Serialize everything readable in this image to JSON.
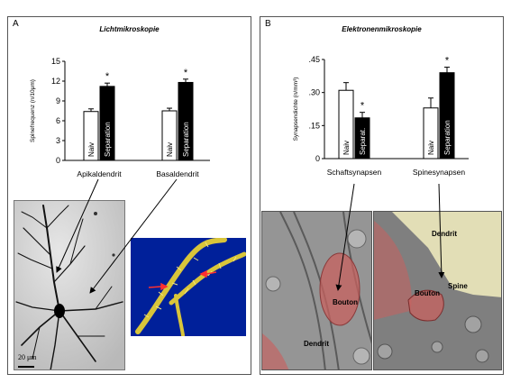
{
  "panels": {
    "a": {
      "label": "A",
      "title": "Lichtmikroskopie"
    },
    "b": {
      "label": "B",
      "title": "Elektronenmikroskopie"
    }
  },
  "chart_data": [
    {
      "type": "bar",
      "ylabel": "Spinefrequenz (n/10μm)",
      "ylim": [
        0,
        15
      ],
      "yticks": [
        "0",
        "3",
        "6",
        "9",
        "12",
        "15"
      ],
      "categories": [
        "Apikaldendrit",
        "Basaldendrit"
      ],
      "series": [
        {
          "name": "Naiv",
          "values": [
            7.4,
            7.5
          ],
          "errors": [
            0.4,
            0.4
          ],
          "color": "#ffffff"
        },
        {
          "name": "Separation",
          "values": [
            11.2,
            11.8
          ],
          "errors": [
            0.5,
            0.5
          ],
          "color": "#000000"
        }
      ],
      "bar_labels": [
        [
          "Naiv",
          "Separation"
        ],
        [
          "Naiv",
          "Separation"
        ]
      ],
      "significance": "*",
      "grid": false
    },
    {
      "type": "bar",
      "ylabel": "Synapsendichte (n/mm³)",
      "ylim": [
        0,
        0.45
      ],
      "yticks": [
        "0",
        ".15",
        ".30",
        ".45"
      ],
      "categories": [
        "Schaftsynapsen",
        "Spinesynapsen"
      ],
      "series": [
        {
          "name": "Naiv",
          "values": [
            0.31,
            0.23
          ],
          "errors": [
            0.035,
            0.045
          ],
          "color": "#ffffff"
        },
        {
          "name": "Separation",
          "values": [
            0.185,
            0.39
          ],
          "errors": [
            0.025,
            0.025
          ],
          "color": "#000000"
        }
      ],
      "bar_labels": [
        [
          "Naiv",
          "Separat."
        ],
        [
          "Naiv",
          "Separation"
        ]
      ],
      "significance": "*",
      "grid": false
    }
  ],
  "images": {
    "neuron_scale": "20 μm",
    "em_left": {
      "bouton": "Bouton",
      "dendrit": "Dendrit"
    },
    "em_right": {
      "dendrit": "Dendrit",
      "spine": "Spine",
      "bouton": "Bouton"
    }
  },
  "colors": {
    "synapse_red": "#c8615f",
    "spine_yellow": "#f3eec0",
    "dendrite_3d": "#d9c53a",
    "background_3d": "#00209a"
  }
}
